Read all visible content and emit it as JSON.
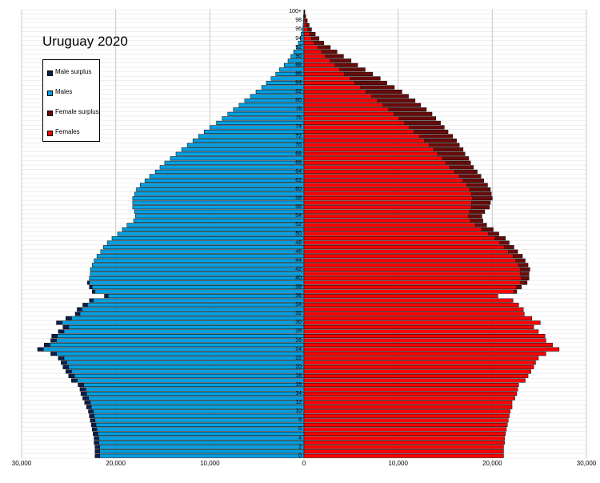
{
  "chart_data": {
    "type": "bar",
    "orientation": "horizontal-population-pyramid",
    "title": "Uruguay 2020",
    "ages": [
      0,
      1,
      2,
      3,
      4,
      5,
      6,
      7,
      8,
      9,
      10,
      11,
      12,
      13,
      14,
      15,
      16,
      17,
      18,
      19,
      20,
      21,
      22,
      23,
      24,
      25,
      26,
      27,
      28,
      29,
      30,
      31,
      32,
      33,
      34,
      35,
      36,
      37,
      38,
      39,
      40,
      41,
      42,
      43,
      44,
      45,
      46,
      47,
      48,
      49,
      50,
      51,
      52,
      53,
      54,
      55,
      56,
      57,
      58,
      59,
      60,
      61,
      62,
      63,
      64,
      65,
      66,
      67,
      68,
      69,
      70,
      71,
      72,
      73,
      74,
      75,
      76,
      77,
      78,
      79,
      80,
      81,
      82,
      83,
      84,
      85,
      86,
      87,
      88,
      89,
      90,
      91,
      92,
      93,
      94,
      95,
      96,
      97,
      98,
      99,
      100
    ],
    "age_tick_labels": [
      "0",
      "2",
      "4",
      "6",
      "8",
      "10",
      "12",
      "14",
      "16",
      "18",
      "20",
      "22",
      "24",
      "26",
      "28",
      "30",
      "32",
      "34",
      "36",
      "38",
      "40",
      "42",
      "44",
      "46",
      "48",
      "50",
      "52",
      "54",
      "56",
      "58",
      "60",
      "62",
      "64",
      "66",
      "68",
      "70",
      "72",
      "74",
      "76",
      "78",
      "80",
      "82",
      "84",
      "86",
      "88",
      "90",
      "92",
      "94",
      "96",
      "98",
      "100+"
    ],
    "x_tick_labels": [
      "30,000",
      "20,000",
      "10,000",
      "0",
      "10,000",
      "20,000",
      "30,000"
    ],
    "x_tick_values": [
      -30000,
      -20000,
      -10000,
      0,
      10000,
      20000,
      30000
    ],
    "xlim": [
      -30000,
      30000
    ],
    "males": [
      21700,
      21700,
      21700,
      21800,
      21800,
      21900,
      22000,
      22100,
      22200,
      22300,
      22400,
      22600,
      22700,
      22900,
      23100,
      23200,
      23400,
      24100,
      24400,
      24700,
      25000,
      25200,
      25500,
      26300,
      27700,
      27000,
      26300,
      26200,
      25500,
      25000,
      25700,
      24700,
      23800,
      23600,
      23000,
      22400,
      20800,
      22200,
      22500,
      22800,
      22800,
      22700,
      22700,
      22500,
      22300,
      22000,
      21600,
      21300,
      20900,
      20400,
      19800,
      19300,
      18800,
      18100,
      17900,
      18000,
      18200,
      18200,
      18200,
      18000,
      17800,
      17400,
      16900,
      16400,
      15800,
      15300,
      14800,
      14200,
      13600,
      13000,
      12400,
      11800,
      11200,
      10600,
      10000,
      9300,
      8700,
      8100,
      7500,
      6900,
      6300,
      5700,
      5100,
      4500,
      4000,
      3500,
      3000,
      2600,
      2100,
      1700,
      1400,
      1100,
      800,
      600,
      400,
      300,
      200,
      100,
      80,
      50,
      20
    ],
    "male_surplus": [
      500,
      500,
      500,
      500,
      500,
      500,
      500,
      500,
      500,
      500,
      500,
      500,
      600,
      600,
      600,
      600,
      600,
      600,
      600,
      600,
      600,
      600,
      600,
      600,
      600,
      600,
      600,
      600,
      600,
      600,
      600,
      600,
      500,
      500,
      500,
      400,
      400,
      300,
      300,
      200,
      0,
      0,
      0,
      0,
      0,
      0,
      0,
      0,
      0,
      0,
      0,
      0,
      0,
      0,
      0,
      0,
      0,
      0,
      0,
      0,
      0,
      0,
      0,
      0,
      0,
      0,
      0,
      0,
      0,
      0,
      0,
      0,
      0,
      0,
      0,
      0,
      0,
      0,
      0,
      0,
      0,
      0,
      0,
      0,
      0,
      0,
      0,
      0,
      0,
      0,
      0,
      0,
      0,
      0,
      0,
      0,
      0,
      0,
      0,
      0,
      0
    ],
    "females": [
      21200,
      21200,
      21200,
      21300,
      21300,
      21400,
      21500,
      21600,
      21700,
      21800,
      21900,
      22100,
      22100,
      22400,
      22600,
      22700,
      22800,
      23500,
      23800,
      24100,
      24400,
      24600,
      24900,
      25700,
      27100,
      26400,
      25700,
      25600,
      24900,
      24400,
      25100,
      24200,
      23400,
      23300,
      22800,
      22200,
      20600,
      22300,
      22600,
      23000,
      23100,
      23000,
      23000,
      22800,
      22500,
      22200,
      21700,
      21300,
      20800,
      20300,
      19600,
      18900,
      18200,
      17700,
      17500,
      17600,
      17800,
      17800,
      17900,
      17800,
      17600,
      17300,
      16900,
      16500,
      16000,
      15500,
      15100,
      14700,
      14200,
      13800,
      13300,
      12800,
      12300,
      11700,
      11200,
      10700,
      10100,
      9600,
      9000,
      8400,
      7800,
      7200,
      6600,
      6000,
      5400,
      4900,
      4300,
      3800,
      3300,
      2800,
      2300,
      1900,
      1500,
      1100,
      800,
      600,
      400,
      250,
      150,
      80,
      40
    ],
    "female_surplus": [
      0,
      0,
      0,
      0,
      0,
      0,
      0,
      0,
      0,
      0,
      0,
      0,
      0,
      0,
      0,
      0,
      0,
      0,
      0,
      0,
      0,
      0,
      0,
      0,
      0,
      0,
      0,
      0,
      0,
      0,
      0,
      0,
      0,
      0,
      0,
      0,
      0,
      300,
      500,
      700,
      800,
      900,
      1000,
      1000,
      1000,
      1000,
      1000,
      1000,
      1000,
      1100,
      1100,
      1200,
      1200,
      1300,
      1400,
      1600,
      1900,
      2000,
      2100,
      2100,
      2200,
      2200,
      2200,
      2300,
      2400,
      2500,
      2600,
      2800,
      2900,
      3100,
      3200,
      3400,
      3500,
      3600,
      3700,
      3800,
      3900,
      4000,
      4000,
      4000,
      4000,
      3900,
      3800,
      3600,
      3400,
      3200,
      3000,
      2700,
      2400,
      2200,
      1900,
      1600,
      1300,
      1000,
      800,
      600,
      400,
      300,
      200,
      100,
      50
    ],
    "legend_placement": "top-left",
    "grid": true,
    "colors": {
      "male_surplus": "#0a1f4a",
      "males": "#00a0e3",
      "female_surplus": "#6b0a0a",
      "females": "#ff0000",
      "grid": "#c8c8c8",
      "bar_border": "#000000"
    }
  },
  "legend": [
    {
      "label": "Male surplus",
      "color": "#0a1f4a"
    },
    {
      "label": "Males",
      "color": "#00a0e3"
    },
    {
      "label": "Female surplus",
      "color": "#6b0a0a"
    },
    {
      "label": "Females",
      "color": "#ff0000"
    }
  ]
}
